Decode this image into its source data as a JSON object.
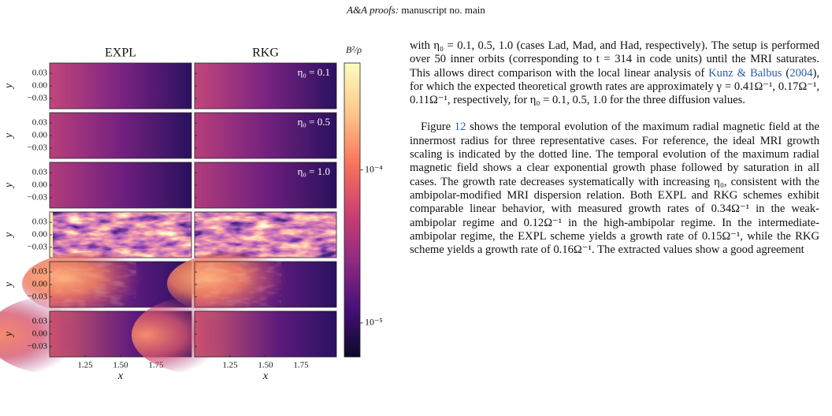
{
  "header": {
    "journal": "A&A proofs:",
    "manuscript": "manuscript no. main"
  },
  "figure": {
    "columns": [
      "EXPL",
      "RKG"
    ],
    "colorbar_label": "B²/ρ",
    "colorbar_lim": [
      6e-06,
      0.0005
    ],
    "colorbar_ticks": [
      {
        "value": 0.0001,
        "label": "10⁻⁴"
      },
      {
        "value": 1e-05,
        "label": "10⁻⁵"
      }
    ],
    "annotations": [
      "η₀ = 0.1",
      "η₀ = 0.5",
      "η₀ = 1.0"
    ],
    "ylabel": "y",
    "xlabel": "x",
    "ylim": [
      -0.055,
      0.055
    ],
    "yticks": [
      0.03,
      {
        "value": 0,
        "label": "0.00"
      },
      {
        "value": -0.03,
        "label": "−0.03"
      }
    ],
    "xlim": [
      1,
      2
    ],
    "xticks": [
      1.25,
      {
        "value": 1.5,
        "label": "1.50"
      },
      1.75
    ]
  },
  "text": {
    "paragraphs": [
      [
        "with η₀ = 0.1, 0.5, 1.0 (cases Lad, Mad, and Had, respectively). The setup is performed over 50 inner orbits (corresponding to t = 314 in code units) until the MRI saturates. This allows direct comparison with the local linear analysis of ",
        {
          "link": "Kunz & Balbus"
        },
        " (",
        {
          "link": "2004"
        },
        "), for which the expected theoretical growth rates are approximately γ = 0.41Ω⁻¹, 0.17Ω⁻¹, 0.11Ω⁻¹, respectively, for η₀ = 0.1, 0.5, 1.0 for the three diffusion values."
      ],
      [
        "Figure ",
        {
          "link": "12"
        },
        " shows the temporal evolution of the maximum radial magnetic field at the innermost radius for three representative cases. For reference, the ideal MRI growth scaling is indicated by the dotted line. The temporal evolution of the maximum radial magnetic field shows a clear exponential growth phase followed by saturation in all cases. The growth rate decreases systematically with increasing η₀, consistent with the ambipolar-modified MRI dispersion relation. Both EXPL and RKG schemes exhibit comparable linear behavior, with measured growth rates of 0.34Ω⁻¹ in the weak-ambipolar regime and 0.12Ω⁻¹ in the high-ambipolar regime. In the intermediate-ambipolar regime, the EXPL scheme yields a growth rate of 0.15Ω⁻¹, while the RKG scheme yields a growth rate of 0.16Ω⁻¹. The extracted values show a good agreement"
      ]
    ]
  }
}
